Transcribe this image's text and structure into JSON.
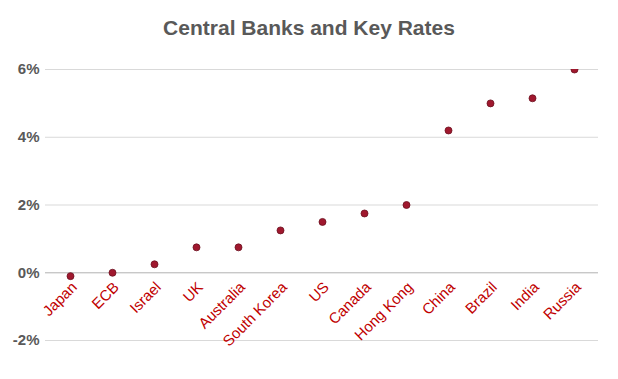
{
  "chart_data": {
    "type": "scatter",
    "title": "Central Banks and Key Rates",
    "categories": [
      "Japan",
      "ECB",
      "Israel",
      "UK",
      "Australia",
      "South Korea",
      "US",
      "Canada",
      "Hong Kong",
      "China",
      "Brazil",
      "India",
      "Russia"
    ],
    "values": [
      -0.1,
      0,
      0.25,
      0.75,
      0.75,
      1.25,
      1.5,
      1.75,
      2.0,
      4.2,
      5.0,
      5.15,
      6.0
    ],
    "color": "#a0182e",
    "marker": "circle",
    "ylim": [
      -2,
      6
    ],
    "yticks": [
      {
        "value": -2,
        "label": "-2%"
      },
      {
        "value": 0,
        "label": "0%"
      },
      {
        "value": 2,
        "label": "2%"
      },
      {
        "value": 4,
        "label": "4%"
      },
      {
        "value": 6,
        "label": "6%"
      }
    ],
    "grid": true
  }
}
